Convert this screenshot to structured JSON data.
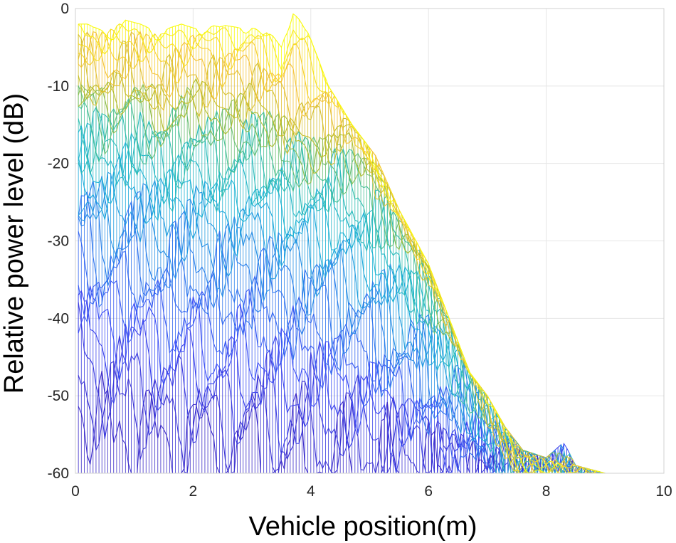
{
  "chart_data": {
    "type": "line",
    "style": "waterfall mesh (many overlaid power-profile curves colored by index, yellow to blue)",
    "title": "",
    "xlabel": "Vehicle position(m)",
    "ylabel": "Relative power level (dB)",
    "xlim": [
      0,
      10
    ],
    "ylim": [
      -60,
      0
    ],
    "x_ticks": [
      "0",
      "2",
      "4",
      "6",
      "8",
      "10"
    ],
    "y_ticks": [
      "0",
      "-10",
      "-20",
      "-30",
      "-40",
      "-50",
      "-60"
    ],
    "grid": true,
    "colormap": [
      "#F9FB0E",
      "#F6C33B",
      "#BABD26",
      "#35C0AB",
      "#1BB1D8",
      "#2E7EEC",
      "#3D4CF5",
      "#3B2BC8"
    ],
    "n_series": 28,
    "vertical_line_spacing_m": 0.05,
    "envelope": {
      "x": [
        0.05,
        0.2,
        0.5,
        0.85,
        1.1,
        1.4,
        1.8,
        2.0,
        2.4,
        2.8,
        3.2,
        3.5,
        3.7,
        3.9,
        4.3,
        4.7,
        5.1,
        5.5,
        6.0,
        6.3,
        6.7,
        7.0,
        7.3,
        7.6,
        8.0,
        8.3,
        8.5,
        9.0,
        9.5,
        10.0
      ],
      "y": [
        -2,
        -2,
        -3,
        -1.5,
        -2,
        -3,
        -2,
        -2.5,
        -2,
        -2.5,
        -2,
        -5,
        0,
        -2,
        -10,
        -15,
        -19,
        -26,
        -33,
        -39,
        -47,
        -50,
        -54,
        -57,
        -58,
        -56,
        -59,
        -60,
        -60,
        -60
      ]
    },
    "series": [
      {
        "name": "",
        "x": [
          0.05,
          0.5,
          1.0,
          1.5,
          2.0,
          2.5,
          3.0,
          3.5,
          3.7,
          4.0,
          4.5,
          5.0,
          5.5,
          6.0,
          6.5,
          7.0,
          7.5,
          8.0
        ],
        "y": [
          -2,
          -3,
          -2,
          -3,
          -2,
          -2.5,
          -2,
          -5,
          0,
          -3,
          -11,
          -19,
          -26,
          -33,
          -41,
          -50,
          -58,
          -60
        ]
      },
      {
        "name": "",
        "x": [
          0.05,
          0.5,
          1.0,
          1.5,
          2.0,
          2.5,
          3.0,
          3.5,
          4.0,
          4.7,
          5.0,
          5.5,
          6.0,
          6.5,
          7.0,
          7.5,
          8.0
        ],
        "y": [
          -8,
          -10,
          -9,
          -12,
          -10,
          -12,
          -11,
          -14,
          -17,
          -15,
          -18,
          -25,
          -33,
          -42,
          -50,
          -58,
          -60
        ]
      },
      {
        "name": "",
        "x": [
          0.05,
          0.5,
          1.0,
          1.5,
          2.0,
          2.5,
          3.0,
          3.5,
          4.0,
          4.5,
          5.0,
          5.5,
          6.0,
          6.5,
          7.0,
          7.5,
          8.0
        ],
        "y": [
          -16,
          -18,
          -17,
          -20,
          -19,
          -21,
          -20,
          -22,
          -23,
          -24,
          -27,
          -32,
          -38,
          -45,
          -52,
          -58,
          -60
        ]
      },
      {
        "name": "",
        "x": [
          0.05,
          0.5,
          1.0,
          1.5,
          2.0,
          2.5,
          3.0,
          3.5,
          4.0,
          4.5,
          5.0,
          5.5,
          6.0,
          6.5,
          7.0,
          7.5,
          8.0
        ],
        "y": [
          -28,
          -32,
          -31,
          -34,
          -33,
          -36,
          -35,
          -37,
          -38,
          -40,
          -42,
          -45,
          -48,
          -52,
          -55,
          -59,
          -60
        ]
      },
      {
        "name": "",
        "x": [
          0.05,
          0.5,
          1.0,
          1.5,
          2.0,
          2.5,
          3.0,
          3.5,
          4.0,
          4.5,
          5.0,
          5.5,
          6.0,
          6.5,
          7.0,
          7.5,
          8.0
        ],
        "y": [
          -48,
          -54,
          -52,
          -55,
          -54,
          -56,
          -55,
          -57,
          -56,
          -57,
          -58,
          -58,
          -59,
          -59,
          -60,
          -60,
          -60
        ]
      }
    ]
  }
}
